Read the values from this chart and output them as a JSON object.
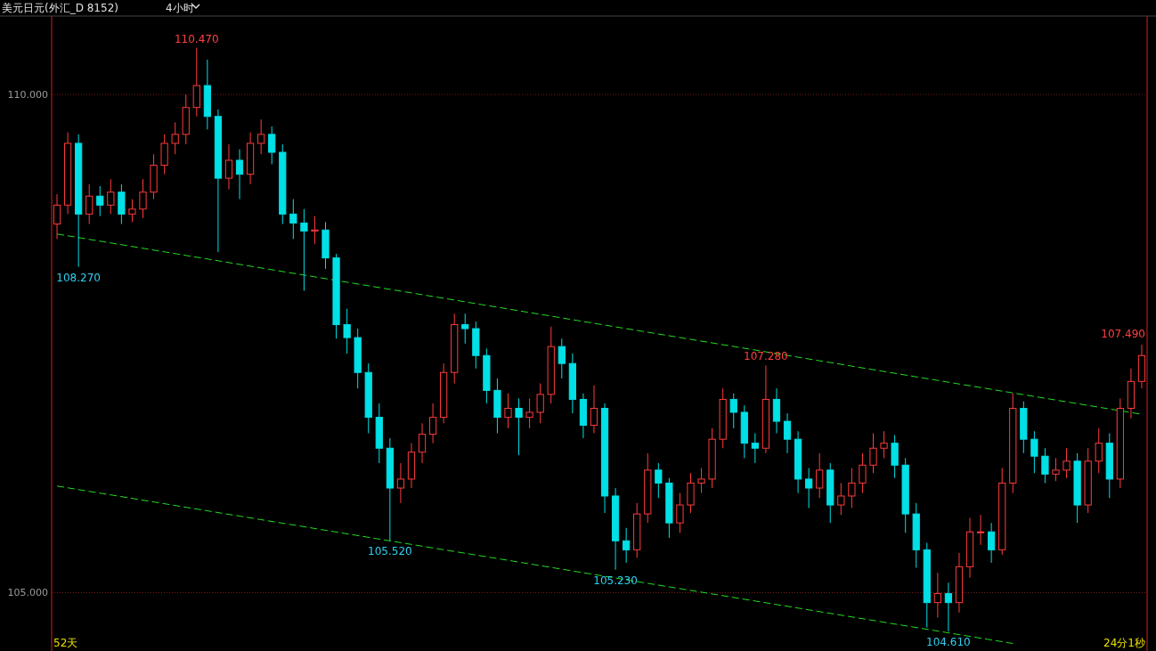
{
  "chart_data": {
    "type": "candlestick",
    "title": "美元日元(外汇_D 8152)",
    "subtitle": "4小时",
    "categories": [
      null,
      null,
      null,
      null,
      null,
      null,
      null,
      null,
      null,
      null,
      null,
      null,
      null,
      null,
      null,
      null,
      null,
      null,
      null,
      null,
      null,
      null,
      null,
      null,
      null,
      null,
      null,
      null,
      null,
      null,
      null,
      null,
      null,
      null,
      null,
      null,
      null,
      null,
      null,
      null,
      null,
      null,
      null,
      null,
      null,
      null,
      null,
      null,
      null,
      null,
      null,
      null,
      null,
      null,
      null,
      null,
      null,
      null,
      null,
      null,
      null,
      null,
      null,
      null,
      null,
      null,
      null,
      null,
      null,
      null,
      null,
      null,
      null,
      null,
      null,
      null,
      null,
      null,
      null,
      null,
      null,
      null,
      null,
      null,
      null,
      null,
      null,
      null,
      null,
      null,
      null,
      null,
      null,
      null,
      null,
      null,
      null,
      null,
      null,
      null,
      null,
      null
    ],
    "ohlc": [
      [
        108.7,
        109.0,
        108.55,
        108.89
      ],
      [
        108.89,
        109.62,
        108.8,
        109.51
      ],
      [
        109.51,
        109.6,
        108.27,
        108.8
      ],
      [
        108.8,
        109.1,
        108.7,
        108.98
      ],
      [
        108.98,
        109.08,
        108.78,
        108.89
      ],
      [
        108.89,
        109.15,
        108.8,
        109.02
      ],
      [
        109.02,
        109.1,
        108.7,
        108.8
      ],
      [
        108.8,
        108.95,
        108.72,
        108.85
      ],
      [
        108.85,
        109.15,
        108.76,
        109.02
      ],
      [
        109.02,
        109.4,
        108.95,
        109.29
      ],
      [
        109.29,
        109.6,
        109.2,
        109.51
      ],
      [
        109.51,
        109.72,
        109.4,
        109.6
      ],
      [
        109.6,
        110.0,
        109.5,
        109.87
      ],
      [
        109.87,
        110.47,
        109.78,
        110.09
      ],
      [
        110.09,
        110.35,
        109.65,
        109.78
      ],
      [
        109.78,
        109.85,
        108.42,
        109.16
      ],
      [
        109.16,
        109.5,
        109.05,
        109.34
      ],
      [
        109.34,
        109.45,
        108.95,
        109.2
      ],
      [
        109.2,
        109.62,
        109.1,
        109.51
      ],
      [
        109.51,
        109.75,
        109.4,
        109.6
      ],
      [
        109.6,
        109.68,
        109.3,
        109.42
      ],
      [
        109.42,
        109.5,
        108.7,
        108.8
      ],
      [
        108.8,
        108.95,
        108.55,
        108.71
      ],
      [
        108.71,
        108.85,
        108.03,
        108.63
      ],
      [
        108.63,
        108.78,
        108.5,
        108.64
      ],
      [
        108.64,
        108.72,
        108.25,
        108.36
      ],
      [
        108.36,
        108.4,
        107.55,
        107.69
      ],
      [
        107.69,
        107.85,
        107.4,
        107.56
      ],
      [
        107.56,
        107.65,
        107.05,
        107.21
      ],
      [
        107.21,
        107.3,
        106.6,
        106.76
      ],
      [
        106.76,
        106.9,
        106.3,
        106.45
      ],
      [
        106.45,
        106.55,
        105.52,
        106.05
      ],
      [
        106.05,
        106.3,
        105.9,
        106.14
      ],
      [
        106.14,
        106.5,
        106.05,
        106.41
      ],
      [
        106.41,
        106.7,
        106.3,
        106.59
      ],
      [
        106.59,
        106.9,
        106.5,
        106.76
      ],
      [
        106.76,
        107.3,
        106.7,
        107.21
      ],
      [
        107.21,
        107.8,
        107.1,
        107.69
      ],
      [
        107.69,
        107.8,
        107.5,
        107.65
      ],
      [
        107.65,
        107.72,
        107.25,
        107.38
      ],
      [
        107.38,
        107.45,
        106.9,
        107.03
      ],
      [
        107.03,
        107.15,
        106.6,
        106.76
      ],
      [
        106.76,
        107.0,
        106.65,
        106.85
      ],
      [
        106.85,
        106.95,
        106.38,
        106.76
      ],
      [
        106.76,
        106.95,
        106.65,
        106.81
      ],
      [
        106.81,
        107.1,
        106.7,
        106.99
      ],
      [
        106.99,
        107.67,
        106.9,
        107.47
      ],
      [
        107.47,
        107.55,
        107.15,
        107.3
      ],
      [
        107.3,
        107.4,
        106.8,
        106.94
      ],
      [
        106.94,
        107.0,
        106.55,
        106.68
      ],
      [
        106.68,
        107.08,
        106.6,
        106.85
      ],
      [
        106.85,
        106.9,
        105.8,
        105.97
      ],
      [
        105.97,
        106.05,
        105.23,
        105.52
      ],
      [
        105.52,
        105.65,
        105.3,
        105.43
      ],
      [
        105.43,
        105.9,
        105.35,
        105.79
      ],
      [
        105.79,
        106.4,
        105.7,
        106.23
      ],
      [
        106.23,
        106.3,
        105.95,
        106.1
      ],
      [
        106.1,
        106.15,
        105.55,
        105.7
      ],
      [
        105.7,
        106.0,
        105.6,
        105.88
      ],
      [
        105.88,
        106.2,
        105.8,
        106.1
      ],
      [
        106.1,
        106.25,
        106.0,
        106.14
      ],
      [
        106.14,
        106.65,
        106.05,
        106.54
      ],
      [
        106.54,
        107.05,
        106.45,
        106.94
      ],
      [
        106.94,
        107.0,
        106.65,
        106.81
      ],
      [
        106.81,
        106.88,
        106.35,
        106.5
      ],
      [
        106.5,
        106.6,
        106.3,
        106.45
      ],
      [
        106.45,
        107.28,
        106.4,
        106.94
      ],
      [
        106.94,
        107.05,
        106.6,
        106.72
      ],
      [
        106.72,
        106.8,
        106.4,
        106.54
      ],
      [
        106.54,
        106.62,
        106.0,
        106.14
      ],
      [
        106.14,
        106.25,
        105.85,
        106.05
      ],
      [
        106.05,
        106.4,
        105.95,
        106.23
      ],
      [
        106.23,
        106.3,
        105.7,
        105.88
      ],
      [
        105.88,
        106.1,
        105.78,
        105.97
      ],
      [
        105.97,
        106.25,
        105.85,
        106.1
      ],
      [
        106.1,
        106.4,
        106.0,
        106.28
      ],
      [
        106.28,
        106.6,
        106.2,
        106.45
      ],
      [
        106.45,
        106.62,
        106.35,
        106.5
      ],
      [
        106.5,
        106.58,
        106.15,
        106.28
      ],
      [
        106.28,
        106.35,
        105.6,
        105.79
      ],
      [
        105.79,
        105.9,
        105.25,
        105.43
      ],
      [
        105.43,
        105.5,
        104.65,
        104.9
      ],
      [
        104.9,
        105.2,
        104.75,
        104.99
      ],
      [
        104.99,
        105.1,
        104.61,
        104.9
      ],
      [
        104.9,
        105.4,
        104.8,
        105.26
      ],
      [
        105.26,
        105.75,
        105.15,
        105.61
      ],
      [
        105.61,
        105.78,
        105.48,
        105.61
      ],
      [
        105.61,
        105.7,
        105.3,
        105.43
      ],
      [
        105.43,
        106.25,
        105.38,
        106.1
      ],
      [
        106.1,
        107.0,
        106.0,
        106.85
      ],
      [
        106.85,
        106.92,
        106.4,
        106.54
      ],
      [
        106.54,
        106.62,
        106.2,
        106.37
      ],
      [
        106.37,
        106.45,
        106.1,
        106.19
      ],
      [
        106.19,
        106.35,
        106.12,
        106.23
      ],
      [
        106.23,
        106.45,
        106.15,
        106.32
      ],
      [
        106.32,
        106.4,
        105.7,
        105.88
      ],
      [
        105.88,
        106.45,
        105.8,
        106.32
      ],
      [
        106.32,
        106.65,
        106.2,
        106.5
      ],
      [
        106.5,
        106.6,
        105.95,
        106.14
      ],
      [
        106.14,
        106.95,
        106.05,
        106.85
      ],
      [
        106.85,
        107.25,
        106.75,
        107.12
      ],
      [
        107.12,
        107.49,
        107.05,
        107.38
      ]
    ],
    "series": [
      {
        "type": "line",
        "color": "#22dd22",
        "line_style": "dashed",
        "values": [
          108.6,
          null,
          null,
          null,
          null,
          null,
          null,
          null,
          null,
          null,
          null,
          null,
          null,
          null,
          null,
          null,
          null,
          null,
          null,
          null,
          null,
          null,
          null,
          null,
          null,
          null,
          null,
          null,
          null,
          null,
          null,
          null,
          null,
          null,
          null,
          null,
          null,
          null,
          null,
          null,
          null,
          null,
          null,
          null,
          null,
          null,
          null,
          null,
          null,
          null,
          null,
          null,
          null,
          null,
          null,
          null,
          null,
          null,
          null,
          null,
          null,
          null,
          null,
          null,
          null,
          null,
          null,
          null,
          null,
          null,
          null,
          null,
          null,
          null,
          null,
          null,
          null,
          null,
          null,
          null,
          null,
          null,
          null,
          null,
          null,
          null,
          null,
          null,
          null,
          null,
          null,
          null,
          null,
          null,
          null,
          null,
          null,
          null,
          null,
          null,
          null,
          106.79
        ]
      },
      {
        "type": "line",
        "color": "#22dd22",
        "line_style": "dashed",
        "values": [
          106.07,
          null,
          null,
          null,
          null,
          null,
          null,
          null,
          null,
          null,
          null,
          null,
          null,
          null,
          null,
          null,
          null,
          null,
          null,
          null,
          null,
          null,
          null,
          null,
          null,
          null,
          null,
          null,
          null,
          null,
          null,
          null,
          null,
          null,
          null,
          null,
          null,
          null,
          null,
          null,
          null,
          null,
          null,
          null,
          null,
          null,
          null,
          null,
          null,
          null,
          null,
          null,
          null,
          null,
          null,
          null,
          null,
          null,
          null,
          null,
          null,
          null,
          null,
          null,
          null,
          null,
          null,
          null,
          null,
          null,
          null,
          null,
          null,
          null,
          null,
          null,
          null,
          null,
          null,
          null,
          null,
          null,
          null,
          null,
          null,
          null,
          null,
          null,
          null,
          104.49,
          null,
          null,
          null,
          null,
          null,
          null,
          null,
          null,
          null,
          null,
          null,
          null
        ]
      }
    ],
    "ylim": [
      104.45,
      110.77
    ],
    "yticks": [
      {
        "value": 105,
        "label": "105.000"
      },
      {
        "value": 110,
        "label": "110.000"
      }
    ],
    "grid": "y",
    "annotations": [
      {
        "text": "110.470",
        "y": 110.47
      },
      {
        "text": "108.270",
        "y": 108.27
      },
      {
        "text": "105.520",
        "y": 105.52
      },
      {
        "text": "105.230",
        "y": 105.23
      },
      {
        "text": "107.280",
        "y": 107.28
      },
      {
        "text": "104.610",
        "y": 104.61
      },
      "52天",
      "24分1秒",
      "107.490"
    ]
  }
}
